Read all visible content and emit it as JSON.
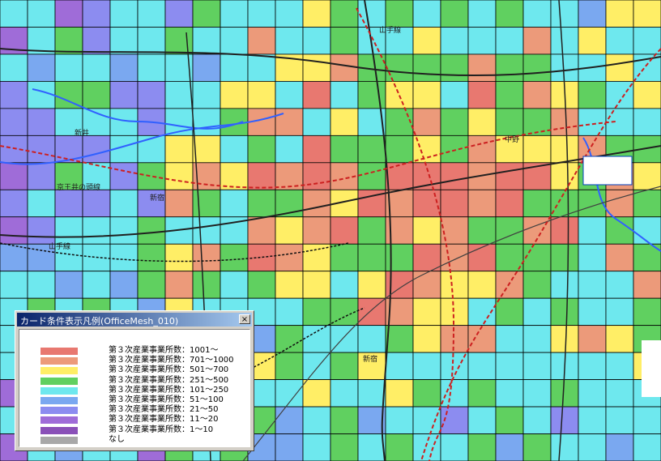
{
  "map": {
    "grid": {
      "cols": 24,
      "rows": 17
    },
    "mesh_categories": [
      {
        "label": "第３次産業事業所数：1001～",
        "color": "#e87870"
      },
      {
        "label": "第３次産業事業所数：701～1000",
        "color": "#ec9a7a"
      },
      {
        "label": "第３次産業事業所数：501～700",
        "color": "#ffee66"
      },
      {
        "label": "第３次産業事業所数：251～500",
        "color": "#60d060"
      },
      {
        "label": "第３次産業事業所数：101～250",
        "color": "#6ee8ee"
      },
      {
        "label": "第３次産業事業所数：51～100",
        "color": "#7aa8f0"
      },
      {
        "label": "第３次産業事業所数：21～50",
        "color": "#8c8cf0"
      },
      {
        "label": "第３次産業事業所数：11～20",
        "color": "#9f6cd8"
      },
      {
        "label": "第３次産業事業所数：1～10",
        "color": "#8a50b8"
      },
      {
        "label": "なし",
        "color": "#a8a8a8"
      }
    ],
    "place_labels": [
      "山手線",
      "中野",
      "新井",
      "京王井の頭線",
      "新宿",
      "新宿",
      "山手線"
    ]
  },
  "legend": {
    "title": "カード条件表示凡例(OfficeMesh_010)",
    "close_label": "×"
  }
}
